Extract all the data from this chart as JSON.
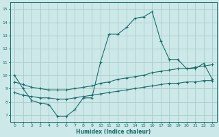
{
  "title": "",
  "xlabel": "Humidex (Indice chaleur)",
  "ylabel": "",
  "xlim": [
    -0.5,
    23.5
  ],
  "ylim": [
    6.5,
    15.5
  ],
  "xticks": [
    0,
    1,
    2,
    3,
    4,
    5,
    6,
    7,
    8,
    9,
    10,
    11,
    12,
    13,
    14,
    15,
    16,
    17,
    18,
    19,
    20,
    21,
    22,
    23
  ],
  "yticks": [
    7,
    8,
    9,
    10,
    11,
    12,
    13,
    14,
    15
  ],
  "bg_color": "#cce8e8",
  "grid_color": "#aacccc",
  "line_color": "#1a6b6b",
  "line1_x": [
    0,
    1,
    2,
    3,
    4,
    5,
    6,
    7,
    8,
    9,
    10,
    11,
    12,
    13,
    14,
    15,
    16,
    17,
    18,
    19,
    20,
    21,
    22,
    23
  ],
  "line1_y": [
    10.0,
    9.0,
    8.1,
    7.9,
    7.8,
    6.9,
    6.9,
    7.4,
    8.3,
    8.3,
    11.0,
    13.1,
    13.1,
    13.6,
    14.3,
    14.4,
    14.8,
    12.6,
    11.2,
    11.2,
    10.5,
    10.5,
    10.9,
    9.7
  ],
  "line2_x": [
    0,
    1,
    2,
    3,
    4,
    5,
    6,
    7,
    8,
    9,
    10,
    11,
    12,
    13,
    14,
    15,
    16,
    17,
    18,
    19,
    20,
    21,
    22,
    23
  ],
  "line2_y": [
    9.5,
    9.3,
    9.1,
    9.0,
    8.9,
    8.9,
    8.9,
    9.0,
    9.1,
    9.2,
    9.4,
    9.5,
    9.7,
    9.8,
    9.9,
    10.0,
    10.2,
    10.3,
    10.4,
    10.5,
    10.5,
    10.6,
    10.7,
    10.8
  ],
  "line3_x": [
    0,
    1,
    2,
    3,
    4,
    5,
    6,
    7,
    8,
    9,
    10,
    11,
    12,
    13,
    14,
    15,
    16,
    17,
    18,
    19,
    20,
    21,
    22,
    23
  ],
  "line3_y": [
    8.7,
    8.5,
    8.4,
    8.3,
    8.3,
    8.2,
    8.2,
    8.3,
    8.4,
    8.5,
    8.6,
    8.7,
    8.8,
    8.9,
    9.0,
    9.1,
    9.2,
    9.3,
    9.4,
    9.4,
    9.5,
    9.5,
    9.6,
    9.6
  ]
}
